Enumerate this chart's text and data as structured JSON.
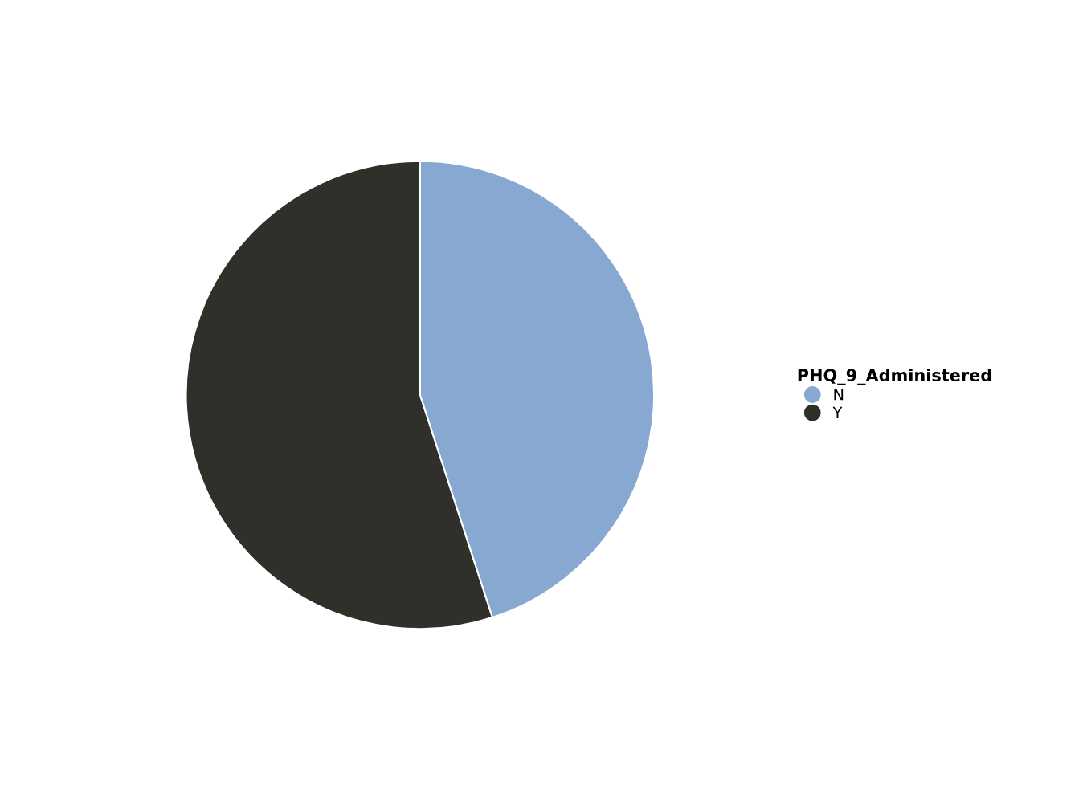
{
  "chart_data": {
    "type": "pie",
    "legend_title": "PHQ_9_Administered",
    "legend": "right",
    "categories": [
      "N",
      "Y"
    ],
    "values": [
      45,
      55
    ],
    "colors": [
      "#87a8d0",
      "#30302a"
    ]
  }
}
